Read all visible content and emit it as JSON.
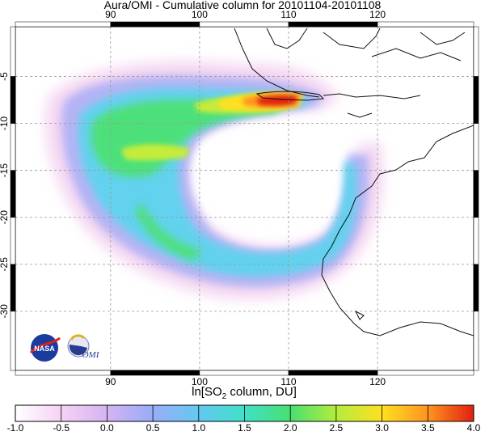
{
  "chart_data": {
    "type": "map",
    "title": "Aura/OMI - Cumulative column for 20101104-20101108",
    "xlim": [
      79.3,
      130.8
    ],
    "ylim": [
      -36.3,
      0.3
    ],
    "xticks": [
      90,
      100,
      110,
      120
    ],
    "yticks": [
      -5,
      -10,
      -15,
      -20,
      -25,
      -30
    ],
    "grid": true,
    "colorbar": {
      "label": [
        "ln[SO",
        "2",
        " column, DU]"
      ],
      "lim": [
        -1,
        4
      ],
      "ticks": [
        {
          "value": -1,
          "label": "-1.0"
        },
        {
          "value": -0.5,
          "label": "-0.5"
        },
        {
          "value": 0,
          "label": "0.0"
        },
        {
          "value": 0.5,
          "label": "0.5"
        },
        {
          "value": 1,
          "label": "1.0"
        },
        {
          "value": 1.5,
          "label": "1.5"
        },
        {
          "value": 2,
          "label": "2.0"
        },
        {
          "value": 2.5,
          "label": "2.5"
        },
        {
          "value": 3,
          "label": "3.0"
        },
        {
          "value": 3.5,
          "label": "3.5"
        },
        {
          "value": 4,
          "label": "4.0"
        }
      ],
      "colors": [
        "#ffffff",
        "#f6d2f4",
        "#d4b4f2",
        "#98acf8",
        "#64c8f0",
        "#40e0c8",
        "#48e070",
        "#b4ec3c",
        "#ffe020",
        "#ff9420",
        "#e02010"
      ]
    },
    "logos": {
      "nasa": "NASA",
      "omi": "OMI"
    }
  }
}
